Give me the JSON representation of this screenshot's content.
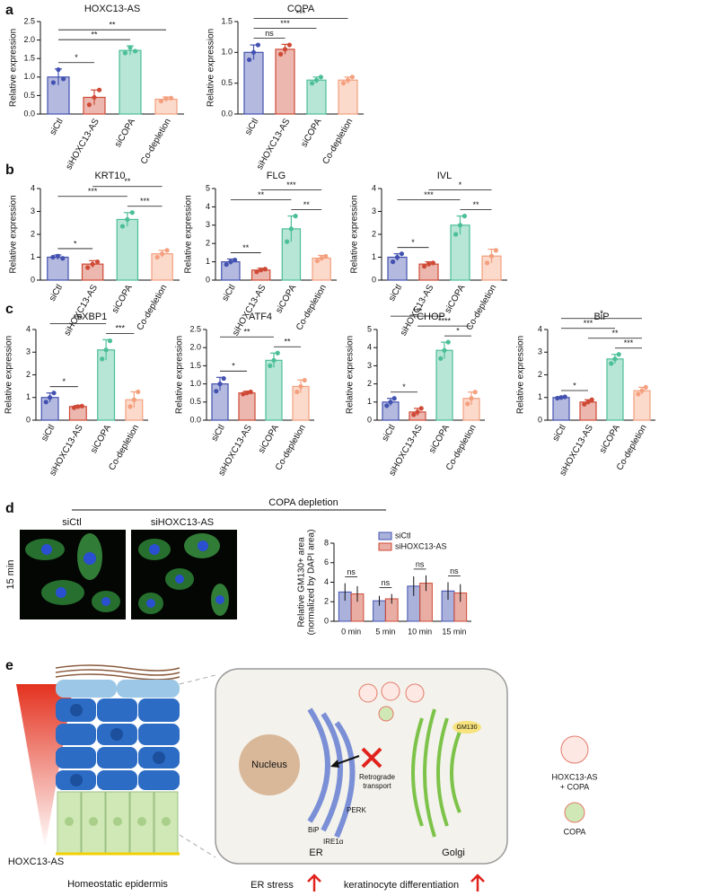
{
  "panel_labels": [
    "a",
    "b",
    "c",
    "d",
    "e"
  ],
  "chart_data": [
    {
      "type": "bar",
      "title": "HOXC13-AS",
      "ylabel": "Relative expression",
      "categories": [
        "siCtl",
        "siHOXC13-AS",
        "siCOPA",
        "Co-depletion"
      ],
      "values": [
        1.0,
        0.45,
        1.72,
        0.4
      ],
      "errors": [
        0.22,
        0.2,
        0.12,
        0.06
      ],
      "points": [
        [
          0.85,
          1.2,
          0.95
        ],
        [
          0.25,
          0.45,
          0.65
        ],
        [
          1.65,
          1.8,
          1.7
        ],
        [
          0.35,
          0.42,
          0.43
        ]
      ],
      "colors": [
        "#4352b0",
        "#cf4a36",
        "#4cbf98",
        "#f4a07e"
      ],
      "ylim": [
        0,
        2.5
      ],
      "yticks": [
        {
          "value": 0,
          "label": "0.0"
        },
        0.5,
        {
          "value": 1,
          "label": "1.0"
        },
        1.5,
        {
          "value": 2,
          "label": "2.0"
        },
        2.5
      ],
      "comparisons": [
        {
          "groups": [
            0,
            1
          ],
          "label": "*"
        },
        {
          "groups": [
            0,
            2
          ],
          "label": "**"
        },
        {
          "groups": [
            0,
            3
          ],
          "label": "**"
        }
      ]
    },
    {
      "type": "bar",
      "title": "COPA",
      "ylabel": "Relative expression",
      "categories": [
        "siCtl",
        "siHOXC13-AS",
        "siCOPA",
        "Co-depletion"
      ],
      "values": [
        1.0,
        1.05,
        0.55,
        0.55
      ],
      "errors": [
        0.12,
        0.08,
        0.05,
        0.05
      ],
      "points": [
        [
          0.88,
          1.0,
          1.12
        ],
        [
          0.97,
          1.05,
          1.12
        ],
        [
          0.5,
          0.55,
          0.6
        ],
        [
          0.5,
          0.55,
          0.6
        ]
      ],
      "colors": [
        "#4352b0",
        "#cf4a36",
        "#4cbf98",
        "#f4a07e"
      ],
      "ylim": [
        0,
        1.5
      ],
      "yticks": [
        {
          "value": 0,
          "label": "0.0"
        },
        0.5,
        {
          "value": 1,
          "label": "1.0"
        },
        1.5
      ],
      "comparisons": [
        {
          "groups": [
            0,
            1
          ],
          "label": "ns"
        },
        {
          "groups": [
            0,
            2
          ],
          "label": "***"
        },
        {
          "groups": [
            0,
            3
          ],
          "label": "***"
        }
      ]
    },
    {
      "type": "bar",
      "title": "KRT10",
      "ylabel": "Relative expression",
      "categories": [
        "siCtl",
        "siHOXC13-AS",
        "siCOPA",
        "Co-depletion"
      ],
      "values": [
        1.0,
        0.7,
        2.65,
        1.15
      ],
      "errors": [
        0.1,
        0.15,
        0.3,
        0.15
      ],
      "points": [
        [
          1.0,
          1.05,
          0.95
        ],
        [
          0.55,
          0.7,
          0.8
        ],
        [
          2.35,
          2.65,
          2.95
        ],
        [
          1.0,
          1.15,
          1.3
        ]
      ],
      "colors": [
        "#4352b0",
        "#cf4a36",
        "#4cbf98",
        "#f4a07e"
      ],
      "ylim": [
        0,
        4
      ],
      "yticks": [
        0,
        1,
        2,
        3,
        4
      ],
      "comparisons": [
        {
          "groups": [
            0,
            1
          ],
          "label": "*"
        },
        {
          "groups": [
            2,
            3
          ],
          "label": "***"
        },
        {
          "groups": [
            0,
            2
          ],
          "label": "***"
        },
        {
          "groups": [
            1,
            3
          ],
          "label": "**"
        }
      ]
    },
    {
      "type": "bar",
      "title": "FLG",
      "ylabel": "Relative expression",
      "categories": [
        "siCtl",
        "siHOXC13-AS",
        "siCOPA",
        "Co-depletion"
      ],
      "values": [
        1.0,
        0.55,
        2.8,
        1.2
      ],
      "errors": [
        0.15,
        0.1,
        0.7,
        0.15
      ],
      "points": [
        [
          0.85,
          1.0,
          1.1
        ],
        [
          0.45,
          0.55,
          0.6
        ],
        [
          2.1,
          2.8,
          3.5
        ],
        [
          1.05,
          1.2,
          1.3
        ]
      ],
      "colors": [
        "#4352b0",
        "#cf4a36",
        "#4cbf98",
        "#f4a07e"
      ],
      "ylim": [
        0,
        5
      ],
      "yticks": [
        0,
        1,
        2,
        3,
        4,
        5
      ],
      "comparisons": [
        {
          "groups": [
            0,
            1
          ],
          "label": "**"
        },
        {
          "groups": [
            2,
            3
          ],
          "label": "**"
        },
        {
          "groups": [
            0,
            2
          ],
          "label": "**"
        },
        {
          "groups": [
            1,
            3
          ],
          "label": "***"
        }
      ]
    },
    {
      "type": "bar",
      "title": "IVL",
      "ylabel": "Relative expression",
      "categories": [
        "siCtl",
        "siHOXC13-AS",
        "siCOPA",
        "Co-depletion"
      ],
      "values": [
        1.0,
        0.7,
        2.4,
        1.05
      ],
      "errors": [
        0.15,
        0.1,
        0.4,
        0.3
      ],
      "points": [
        [
          0.8,
          1.0,
          1.15
        ],
        [
          0.6,
          0.7,
          0.75
        ],
        [
          2.0,
          2.4,
          2.8
        ],
        [
          0.75,
          1.05,
          1.3
        ]
      ],
      "colors": [
        "#4352b0",
        "#cf4a36",
        "#4cbf98",
        "#f4a07e"
      ],
      "ylim": [
        0,
        4
      ],
      "yticks": [
        0,
        1,
        2,
        3,
        4
      ],
      "comparisons": [
        {
          "groups": [
            0,
            1
          ],
          "label": "*"
        },
        {
          "groups": [
            2,
            3
          ],
          "label": "**"
        },
        {
          "groups": [
            0,
            2
          ],
          "label": "***"
        },
        {
          "groups": [
            1,
            3
          ],
          "label": "*"
        }
      ]
    },
    {
      "type": "bar",
      "title": "sXBP1",
      "ylabel": "Relative expression",
      "categories": [
        "siCtl",
        "siHOXC13-AS",
        "siCOPA",
        "Co-depletion"
      ],
      "values": [
        1.0,
        0.6,
        3.1,
        0.9
      ],
      "errors": [
        0.2,
        0.05,
        0.45,
        0.35
      ],
      "points": [
        [
          0.8,
          1.0,
          1.2
        ],
        [
          0.55,
          0.6,
          0.62
        ],
        [
          2.7,
          3.1,
          3.5
        ],
        [
          0.6,
          0.9,
          1.25
        ]
      ],
      "colors": [
        "#4352b0",
        "#cf4a36",
        "#4cbf98",
        "#f4a07e"
      ],
      "ylim": [
        0,
        4
      ],
      "yticks": [
        0,
        1,
        2,
        3,
        4
      ],
      "comparisons": [
        {
          "groups": [
            0,
            1
          ],
          "label": "*"
        },
        {
          "groups": [
            2,
            3
          ],
          "label": "***"
        },
        {
          "groups": [
            0,
            2
          ],
          "label": "***"
        }
      ]
    },
    {
      "type": "bar",
      "title": "ATF4",
      "ylabel": "Relative expression",
      "categories": [
        "siCtl",
        "siHOXC13-AS",
        "siCOPA",
        "Co-depletion"
      ],
      "values": [
        1.0,
        0.75,
        1.65,
        0.93
      ],
      "errors": [
        0.18,
        0.05,
        0.2,
        0.18
      ],
      "points": [
        [
          0.8,
          1.0,
          1.15
        ],
        [
          0.72,
          0.75,
          0.78
        ],
        [
          1.5,
          1.65,
          1.85
        ],
        [
          0.78,
          0.93,
          1.1
        ]
      ],
      "colors": [
        "#4352b0",
        "#cf4a36",
        "#4cbf98",
        "#f4a07e"
      ],
      "ylim": [
        0,
        2.5
      ],
      "yticks": [
        {
          "value": 0,
          "label": "0.0"
        },
        0.5,
        {
          "value": 1,
          "label": "1.0"
        },
        1.5,
        {
          "value": 2,
          "label": "2.0"
        },
        2.5
      ],
      "comparisons": [
        {
          "groups": [
            0,
            1
          ],
          "label": "*"
        },
        {
          "groups": [
            2,
            3
          ],
          "label": "**"
        },
        {
          "groups": [
            0,
            2
          ],
          "label": "**"
        }
      ]
    },
    {
      "type": "bar",
      "title": "CHOP",
      "ylabel": "Relative expression",
      "categories": [
        "siCtl",
        "siHOXC13-AS",
        "siCOPA",
        "Co-depletion"
      ],
      "values": [
        1.0,
        0.45,
        3.85,
        1.2
      ],
      "errors": [
        0.2,
        0.2,
        0.45,
        0.35
      ],
      "points": [
        [
          0.8,
          1.0,
          1.2
        ],
        [
          0.3,
          0.45,
          0.65
        ],
        [
          3.4,
          3.85,
          4.3
        ],
        [
          0.9,
          1.2,
          1.55
        ]
      ],
      "colors": [
        "#4352b0",
        "#cf4a36",
        "#4cbf98",
        "#f4a07e"
      ],
      "ylim": [
        0,
        5
      ],
      "yticks": [
        0,
        1,
        2,
        3,
        4,
        5
      ],
      "comparisons": [
        {
          "groups": [
            0,
            1
          ],
          "label": "*"
        },
        {
          "groups": [
            2,
            3
          ],
          "label": "*"
        },
        {
          "groups": [
            1,
            3
          ],
          "label": "****"
        },
        {
          "groups": [
            0,
            2
          ],
          "label": "***"
        }
      ]
    },
    {
      "type": "bar",
      "title": "BiP",
      "ylabel": "Relative expression",
      "categories": [
        "siCtl",
        "siHOXC13-AS",
        "siCOPA",
        "Co-depletion"
      ],
      "values": [
        1.0,
        0.8,
        2.7,
        1.3
      ],
      "errors": [
        0.03,
        0.1,
        0.2,
        0.15
      ],
      "points": [
        [
          0.97,
          1.0,
          1.03
        ],
        [
          0.7,
          0.8,
          0.9
        ],
        [
          2.5,
          2.7,
          2.9
        ],
        [
          1.15,
          1.3,
          1.45
        ]
      ],
      "colors": [
        "#4352b0",
        "#cf4a36",
        "#4cbf98",
        "#f4a07e"
      ],
      "ylim": [
        0,
        4
      ],
      "yticks": [
        0,
        1,
        2,
        3,
        4
      ],
      "comparisons": [
        {
          "groups": [
            0,
            1
          ],
          "label": "*"
        },
        {
          "groups": [
            2,
            3
          ],
          "label": "***"
        },
        {
          "groups": [
            1,
            3
          ],
          "label": "**"
        },
        {
          "groups": [
            0,
            2
          ],
          "label": "***"
        },
        {
          "groups": [
            0,
            3
          ],
          "label": "*"
        }
      ]
    },
    {
      "type": "bar",
      "ylabel": [
        "Relative GM130+ area",
        "(normalized by DAPI area)"
      ],
      "categories": [
        "0 min",
        "5 min",
        "10 min",
        "15 min"
      ],
      "series": [
        {
          "name": "siCtl",
          "color": "#4352b0",
          "values": [
            3.0,
            2.1,
            3.6,
            3.1
          ],
          "errors": [
            0.9,
            0.5,
            1.0,
            0.9
          ]
        },
        {
          "name": "siHOXC13-AS",
          "color": "#cf4a36",
          "values": [
            2.8,
            2.3,
            3.9,
            2.9
          ],
          "errors": [
            0.8,
            0.5,
            0.8,
            0.9
          ]
        }
      ],
      "ylim": [
        0,
        8
      ],
      "yticks": [
        0,
        2,
        4,
        6,
        8
      ],
      "comparisons": [
        {
          "category": 0,
          "label": "ns"
        },
        {
          "category": 1,
          "label": "ns"
        },
        {
          "category": 2,
          "label": "ns"
        },
        {
          "category": 3,
          "label": "ns"
        }
      ]
    }
  ],
  "microscopy": {
    "title": "COPA depletion",
    "columns": [
      "siCtl",
      "siHOXC13-AS"
    ],
    "row_label": "15 min"
  },
  "diagram": {
    "nucleus": "Nucleus",
    "er": "ER",
    "golgi": "Golgi",
    "gm130": "GM130",
    "transport": [
      "Retrograde",
      "transport"
    ],
    "perk": "PERK",
    "bip": "BiP",
    "ire1a": "IRE1α",
    "legend_complex": [
      "HOXC13-AS",
      "+ COPA"
    ],
    "legend_copa": "COPA",
    "gradient_label": "HOXC13-AS",
    "epidermis": "Homeostatic epidermis",
    "er_stress": "ER stress",
    "differentiation": "keratinocyte differentiation"
  }
}
